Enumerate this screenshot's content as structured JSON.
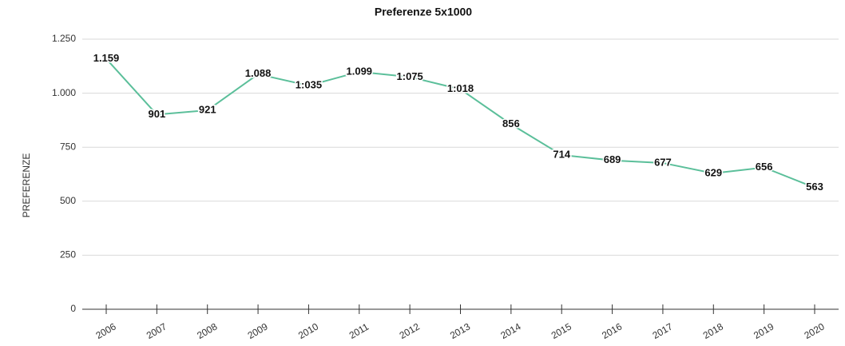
{
  "chart_data": {
    "type": "line",
    "title": "Preferenze 5x1000",
    "y_label": "PREFERENZE",
    "categories": [
      "2006",
      "2007",
      "2008",
      "2009",
      "2010",
      "2011",
      "2012",
      "2013",
      "2014",
      "2015",
      "2016",
      "2017",
      "2018",
      "2019",
      "2020"
    ],
    "values": [
      1159,
      901,
      921,
      1088,
      1035,
      1099,
      1075,
      1018,
      856,
      714,
      689,
      677,
      629,
      656,
      563
    ],
    "value_labels": [
      "1.159",
      "901",
      "921",
      "1.088",
      "1:035",
      "1.099",
      "1:075",
      "1:018",
      "856",
      "714",
      "689",
      "677",
      "629",
      "656",
      "563"
    ],
    "color": "#5bbf9a",
    "ylim": [
      0,
      1250
    ],
    "yticks": [
      0,
      250,
      500,
      750,
      {
        "value": 1000,
        "label": "1.000"
      },
      {
        "value": 1250,
        "label": "1.250"
      }
    ],
    "grid": true
  }
}
